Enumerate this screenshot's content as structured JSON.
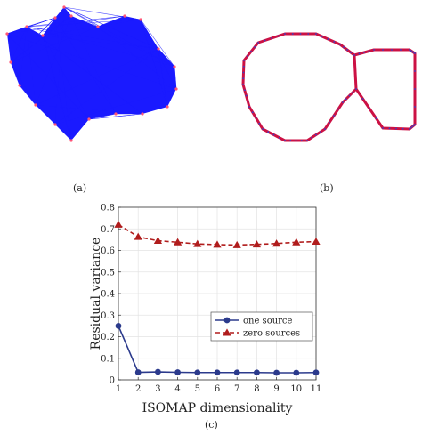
{
  "panel_a": {
    "caption": "(a)",
    "edge_color": "#1a1aff",
    "node_color": "#ff5577"
  },
  "panel_b": {
    "caption": "(b)",
    "stroke_color": "#cc1144",
    "node_color": "#3344cc"
  },
  "panel_c": {
    "caption": "(c)"
  },
  "chart_data": {
    "type": "line",
    "xlabel": "ISOMAP dimensionality",
    "ylabel": "Residual variance",
    "x": [
      1,
      2,
      3,
      4,
      5,
      6,
      7,
      8,
      9,
      10,
      11
    ],
    "xlim": [
      1,
      11
    ],
    "ylim": [
      0,
      0.8
    ],
    "xticks": [
      "1",
      "2",
      "3",
      "4",
      "5",
      "6",
      "7",
      "8",
      "9",
      "10",
      "11"
    ],
    "yticks": [
      "0",
      "0.1",
      "0.2",
      "0.3",
      "0.4",
      "0.5",
      "0.6",
      "0.7",
      "0.8"
    ],
    "grid": true,
    "legend_position": "right-center",
    "series": [
      {
        "name": "one source",
        "color": "#2b3a8c",
        "style": "solid",
        "marker": "circle",
        "values": [
          0.25,
          0.035,
          0.037,
          0.035,
          0.034,
          0.034,
          0.034,
          0.034,
          0.033,
          0.033,
          0.034
        ]
      },
      {
        "name": "zero sources",
        "color": "#b01c1c",
        "style": "dashed",
        "marker": "triangle",
        "values": [
          0.72,
          0.663,
          0.645,
          0.638,
          0.63,
          0.627,
          0.625,
          0.628,
          0.632,
          0.638,
          0.641
        ]
      }
    ]
  }
}
